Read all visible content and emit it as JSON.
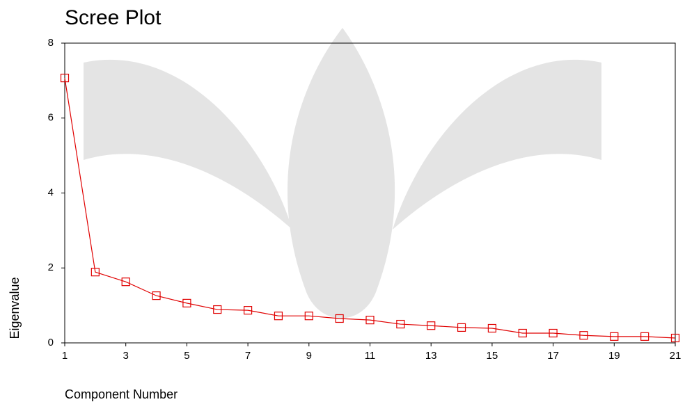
{
  "chart_data": {
    "type": "line",
    "title": "Scree Plot",
    "x_label": "Component Number",
    "y_label": "Eigenvalue",
    "x": [
      1,
      2,
      3,
      4,
      5,
      6,
      7,
      8,
      9,
      10,
      11,
      12,
      13,
      14,
      15,
      16,
      17,
      18,
      19,
      20,
      21
    ],
    "series": [
      {
        "name": "Eigenvalue",
        "color": "#e00000",
        "values": [
          7.07,
          1.89,
          1.63,
          1.26,
          1.06,
          0.89,
          0.87,
          0.72,
          0.72,
          0.65,
          0.61,
          0.5,
          0.46,
          0.41,
          0.39,
          0.26,
          0.26,
          0.2,
          0.17,
          0.17,
          0.13
        ]
      }
    ],
    "xlim": [
      1,
      21
    ],
    "xticks": [
      1,
      3,
      5,
      7,
      9,
      11,
      13,
      15,
      17,
      19,
      21
    ],
    "ylim": [
      0,
      8
    ],
    "yticks": [
      0,
      2,
      4,
      6,
      8
    ],
    "grid": false
  }
}
